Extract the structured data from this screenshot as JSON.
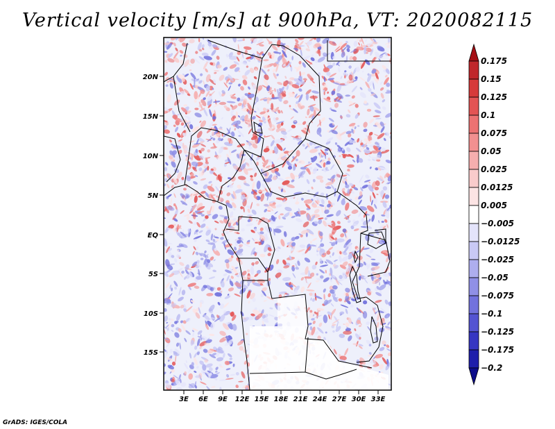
{
  "title": "Vertical velocity [m/s] at 900hPa, VT: 2020082115",
  "credit": "GrADS: IGES/COLA",
  "lat_labels": [
    "20N",
    "15N",
    "10N",
    "5N",
    "EQ",
    "5S",
    "10S",
    "15S"
  ],
  "lon_labels": [
    "3E",
    "6E",
    "9E",
    "12E",
    "15E",
    "18E",
    "21E",
    "24E",
    "27E",
    "30E",
    "33E"
  ],
  "colorbar": {
    "levels": [
      "0.175",
      "0.15",
      "0.125",
      "0.1",
      "0.075",
      "0.05",
      "0.025",
      "0.0125",
      "0.005",
      "−0.005",
      "−0.0125",
      "−0.025",
      "−0.05",
      "−0.075",
      "−0.1",
      "−0.125",
      "−0.175",
      "−0.2"
    ],
    "colors": [
      "#a50f15",
      "#c0272b",
      "#d63a3a",
      "#e35454",
      "#ec7272",
      "#f29090",
      "#f6aeae",
      "#f9cbcb",
      "#fce4e4",
      "#ffffff",
      "#e4e4fb",
      "#c9c9f5",
      "#aeaeee",
      "#9090e6",
      "#7272dd",
      "#5454d2",
      "#3636c2",
      "#1e1eab",
      "#0d0d8a"
    ]
  }
}
